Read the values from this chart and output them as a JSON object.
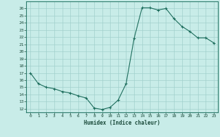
{
  "x": [
    0,
    1,
    2,
    3,
    4,
    5,
    6,
    7,
    8,
    9,
    10,
    11,
    12,
    13,
    14,
    15,
    16,
    17,
    18,
    19,
    20,
    21,
    22,
    23
  ],
  "y": [
    17.0,
    15.5,
    15.0,
    14.8,
    14.4,
    14.2,
    13.8,
    13.5,
    12.1,
    11.9,
    12.2,
    13.2,
    15.5,
    21.8,
    26.1,
    26.1,
    25.8,
    26.0,
    24.6,
    23.5,
    22.8,
    21.9,
    21.9,
    21.2
  ],
  "bg_color": "#c8ece8",
  "grid_color": "#a0d0cc",
  "line_color": "#1a6b5a",
  "marker_color": "#1a6b5a",
  "xlabel": "Humidex (Indice chaleur)",
  "xlim": [
    -0.5,
    23.5
  ],
  "ylim": [
    11.5,
    27.0
  ],
  "yticks": [
    12,
    13,
    14,
    15,
    16,
    17,
    18,
    19,
    20,
    21,
    22,
    23,
    24,
    25,
    26
  ],
  "xticks": [
    0,
    1,
    2,
    3,
    4,
    5,
    6,
    7,
    8,
    9,
    10,
    11,
    12,
    13,
    14,
    15,
    16,
    17,
    18,
    19,
    20,
    21,
    22,
    23
  ]
}
